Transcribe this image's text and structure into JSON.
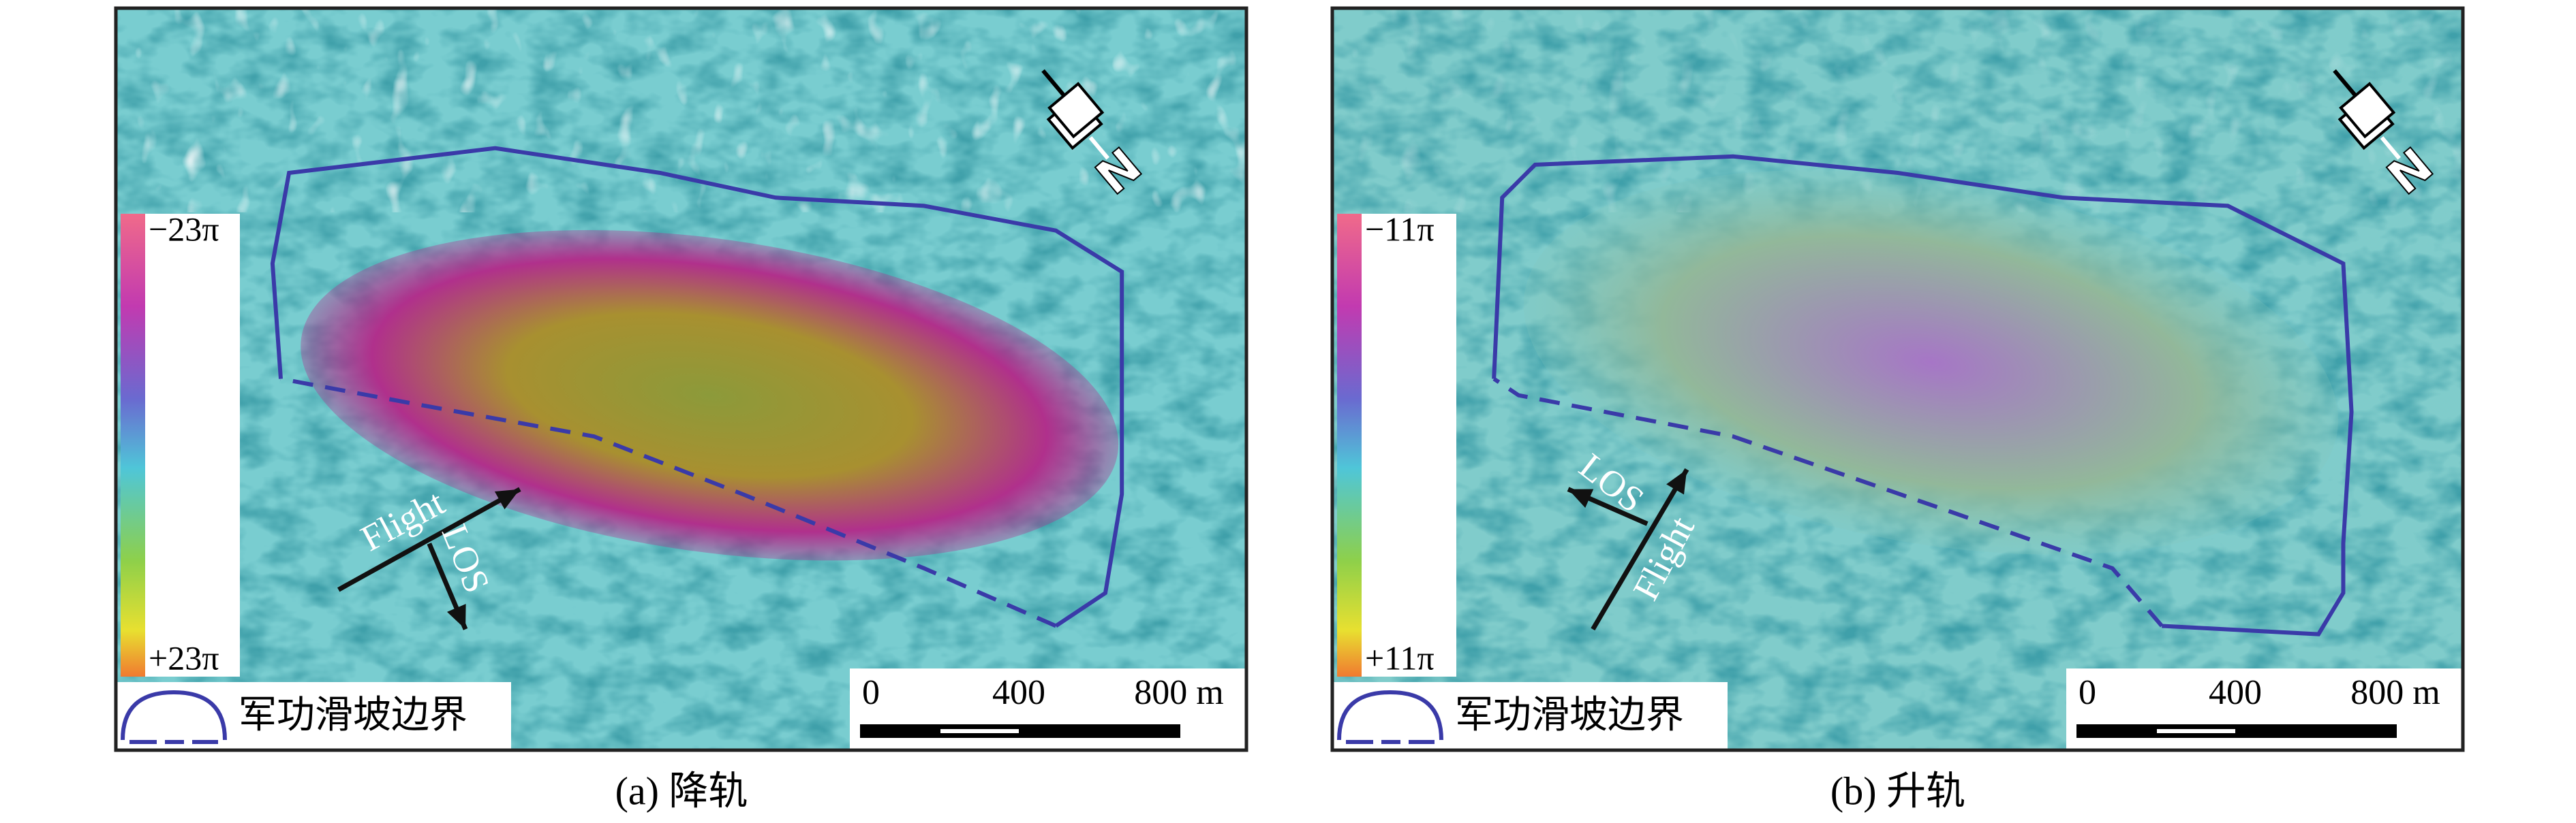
{
  "panels": [
    {
      "caption": "(a) 降轨",
      "colorbar_top": "−23π",
      "colorbar_bottom": "+23π",
      "legend": "军功滑坡边界",
      "scale_labels": [
        "0",
        "400",
        "800 m"
      ],
      "arrows": [
        "Flight",
        "LOS"
      ],
      "north": "N"
    },
    {
      "caption": "(b) 升轨",
      "colorbar_top": "−11π",
      "colorbar_bottom": "+11π",
      "legend": "军功滑坡边界",
      "scale_labels": [
        "0",
        "400",
        "800 m"
      ],
      "arrows": [
        "LOS",
        "Flight"
      ],
      "north": "N"
    }
  ]
}
